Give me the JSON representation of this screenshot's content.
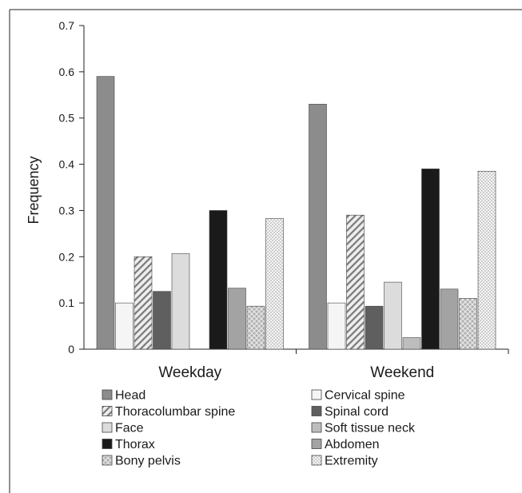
{
  "chart_data": {
    "type": "bar",
    "title": "",
    "xlabel": "",
    "ylabel": "Frequency",
    "ylim": [
      0,
      0.7
    ],
    "yticks": [
      "0",
      "0.1",
      "0.2",
      "0.3",
      "0.4",
      "0.5",
      "0.6",
      "0.7"
    ],
    "grid": false,
    "legend_position": "bottom",
    "categories": [
      "Weekday",
      "Weekend"
    ],
    "series": [
      {
        "name": "Head",
        "values": [
          0.59,
          0.53
        ],
        "color": "#8c8c8c",
        "pattern": "solid"
      },
      {
        "name": "Cervical spine",
        "values": [
          0.1,
          0.1
        ],
        "color": "#f5f5f5",
        "pattern": "solid"
      },
      {
        "name": "Thoracolumbar spine",
        "values": [
          0.2,
          0.29
        ],
        "color": "#e6e6e6",
        "pattern": "diagonal"
      },
      {
        "name": "Spinal cord",
        "values": [
          0.125,
          0.093
        ],
        "color": "#5f5f5f",
        "pattern": "solid"
      },
      {
        "name": "Face",
        "values": [
          0.207,
          0.145
        ],
        "color": "#dcdcdc",
        "pattern": "solid"
      },
      {
        "name": "Soft tissue neck",
        "values": [
          0.0,
          0.025
        ],
        "color": "#bdbdbd",
        "pattern": "solid"
      },
      {
        "name": "Thorax",
        "values": [
          0.3,
          0.39
        ],
        "color": "#1a1a1a",
        "pattern": "solid"
      },
      {
        "name": "Abdomen",
        "values": [
          0.132,
          0.13
        ],
        "color": "#a3a3a3",
        "pattern": "solid"
      },
      {
        "name": "Bony pelvis",
        "values": [
          0.093,
          0.11
        ],
        "color": "#b5b5b5",
        "pattern": "crosshatch"
      },
      {
        "name": "Extremity",
        "values": [
          0.283,
          0.385
        ],
        "color": "#f2f2f2",
        "pattern": "dots"
      }
    ]
  }
}
